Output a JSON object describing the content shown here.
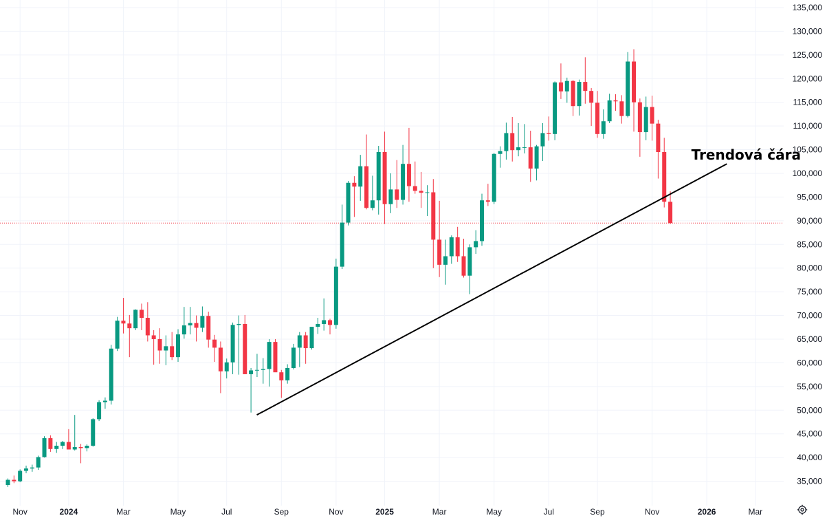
{
  "colors": {
    "up": "#089981",
    "down": "#f23645",
    "grid": "#f0f3fa",
    "axis_text": "#131722",
    "price_line": "#f23645",
    "trendline": "#000000"
  },
  "settings_icon": "gear-icon",
  "chart_data": {
    "type": "candlestick",
    "title": "",
    "interval": "1W",
    "y_axis": {
      "position": "right",
      "ylim": [
        30000,
        137000
      ],
      "ticks": [
        "35,000",
        "40,000",
        "45,000",
        "50,000",
        "55,000",
        "60,000",
        "65,000",
        "70,000",
        "75,000",
        "80,000",
        "85,000",
        "90,000",
        "95,000",
        "100,000",
        "105,000",
        "110,000",
        "115,000",
        "120,000",
        "125,000",
        "130,000",
        "135,000"
      ],
      "tick_values": [
        35000,
        40000,
        45000,
        50000,
        55000,
        60000,
        65000,
        70000,
        75000,
        80000,
        85000,
        90000,
        95000,
        100000,
        105000,
        110000,
        115000,
        120000,
        125000,
        130000,
        135000
      ]
    },
    "x_axis": {
      "labels": [
        {
          "text": "Nov",
          "week": 2,
          "bold": false
        },
        {
          "text": "2024",
          "week": 10,
          "bold": true
        },
        {
          "text": "Mar",
          "week": 19,
          "bold": false
        },
        {
          "text": "May",
          "week": 28,
          "bold": false
        },
        {
          "text": "Jul",
          "week": 36,
          "bold": false
        },
        {
          "text": "Sep",
          "week": 45,
          "bold": false
        },
        {
          "text": "Nov",
          "week": 54,
          "bold": false
        },
        {
          "text": "2025",
          "week": 62,
          "bold": true
        },
        {
          "text": "Mar",
          "week": 71,
          "bold": false
        },
        {
          "text": "May",
          "week": 80,
          "bold": false
        },
        {
          "text": "Jul",
          "week": 89,
          "bold": false
        },
        {
          "text": "Sep",
          "week": 97,
          "bold": false
        },
        {
          "text": "Nov",
          "week": 106,
          "bold": false
        },
        {
          "text": "2026",
          "week": 115,
          "bold": true
        },
        {
          "text": "Mar",
          "week": 123,
          "bold": false
        }
      ]
    },
    "current_price": 89500,
    "candles": [
      [
        34200,
        35600,
        33800,
        35300
      ],
      [
        35300,
        36200,
        34600,
        35000
      ],
      [
        35000,
        37500,
        34800,
        37200
      ],
      [
        37200,
        38300,
        36700,
        37700
      ],
      [
        37700,
        38500,
        37000,
        37900
      ],
      [
        37900,
        40400,
        37400,
        40100
      ],
      [
        40100,
        44500,
        40000,
        44100
      ],
      [
        44100,
        44700,
        41200,
        41800
      ],
      [
        41800,
        43300,
        41000,
        42500
      ],
      [
        42500,
        43500,
        41800,
        43300
      ],
      [
        43300,
        46000,
        42000,
        41700
      ],
      [
        41700,
        49000,
        41500,
        42200
      ],
      [
        42200,
        42900,
        38800,
        42000
      ],
      [
        42000,
        42800,
        41300,
        42500
      ],
      [
        42500,
        48300,
        42300,
        48100
      ],
      [
        48100,
        52100,
        47700,
        51700
      ],
      [
        51700,
        52700,
        50300,
        52000
      ],
      [
        52000,
        63800,
        51200,
        63000
      ],
      [
        63000,
        69700,
        62500,
        68900
      ],
      [
        68900,
        73700,
        66200,
        68300
      ],
      [
        68300,
        70100,
        61200,
        67300
      ],
      [
        67300,
        71300,
        66900,
        71200
      ],
      [
        71200,
        72500,
        66900,
        69500
      ],
      [
        69500,
        72800,
        64500,
        65800
      ],
      [
        65800,
        66900,
        59600,
        65000
      ],
      [
        65000,
        67300,
        59800,
        62600
      ],
      [
        62600,
        65800,
        59500,
        63500
      ],
      [
        63500,
        66500,
        60600,
        61200
      ],
      [
        61200,
        67100,
        60200,
        66000
      ],
      [
        66000,
        71800,
        65100,
        67900
      ],
      [
        67900,
        71800,
        66000,
        68400
      ],
      [
        68400,
        70000,
        64500,
        67400
      ],
      [
        67400,
        71900,
        66500,
        69900
      ],
      [
        69900,
        70800,
        63200,
        64900
      ],
      [
        64900,
        65900,
        60200,
        63200
      ],
      [
        63200,
        64500,
        53600,
        58200
      ],
      [
        58200,
        60900,
        56700,
        60100
      ],
      [
        60100,
        68500,
        57600,
        68000
      ],
      [
        68000,
        70000,
        57500,
        68200
      ],
      [
        68200,
        70100,
        58000,
        57600
      ],
      [
        57600,
        58900,
        49500,
        58400
      ],
      [
        58400,
        61900,
        57000,
        58500
      ],
      [
        58500,
        61000,
        55600,
        58700
      ],
      [
        58700,
        65000,
        55000,
        64400
      ],
      [
        64400,
        65000,
        58100,
        58000
      ],
      [
        58000,
        58500,
        52600,
        56300
      ],
      [
        56300,
        59700,
        55600,
        58900
      ],
      [
        58900,
        64000,
        58600,
        63200
      ],
      [
        63200,
        66500,
        59100,
        65800
      ],
      [
        65800,
        66500,
        59800,
        63100
      ],
      [
        63100,
        67100,
        62800,
        67600
      ],
      [
        67600,
        69500,
        66100,
        68200
      ],
      [
        68200,
        73600,
        66800,
        69000
      ],
      [
        69000,
        69300,
        66000,
        68000
      ],
      [
        68000,
        82000,
        67200,
        80300
      ],
      [
        80300,
        93400,
        79800,
        89600
      ],
      [
        89600,
        98400,
        89000,
        98000
      ],
      [
        98000,
        99400,
        90800,
        97200
      ],
      [
        97200,
        103900,
        94200,
        101500
      ],
      [
        101500,
        108200,
        92400,
        92700
      ],
      [
        92700,
        99500,
        92200,
        94300
      ],
      [
        94300,
        105800,
        91300,
        104500
      ],
      [
        104500,
        108800,
        89300,
        93500
      ],
      [
        93500,
        100000,
        91600,
        96600
      ],
      [
        96600,
        102800,
        92700,
        94400
      ],
      [
        94400,
        106000,
        93400,
        102000
      ],
      [
        102000,
        109600,
        94000,
        97300
      ],
      [
        97300,
        102500,
        95700,
        96300
      ],
      [
        96300,
        100300,
        92700,
        95900
      ],
      [
        95900,
        97500,
        91000,
        96000
      ],
      [
        96000,
        98800,
        80000,
        86000
      ],
      [
        86000,
        94200,
        78100,
        80700
      ],
      [
        80700,
        86000,
        76500,
        82500
      ],
      [
        82500,
        86900,
        80900,
        86500
      ],
      [
        86500,
        88700,
        81300,
        82500
      ],
      [
        82500,
        86200,
        78000,
        78400
      ],
      [
        78400,
        85000,
        74500,
        84400
      ],
      [
        84400,
        88000,
        83000,
        85700
      ],
      [
        85700,
        95700,
        84700,
        94300
      ],
      [
        94300,
        97800,
        93100,
        94000
      ],
      [
        94000,
        104300,
        93500,
        104100
      ],
      [
        104100,
        105700,
        101200,
        104700
      ],
      [
        104700,
        110700,
        102900,
        108500
      ],
      [
        108500,
        111900,
        102500,
        104900
      ],
      [
        104900,
        110600,
        103600,
        105500
      ],
      [
        105500,
        110400,
        104200,
        105500
      ],
      [
        105500,
        109000,
        98200,
        101000
      ],
      [
        101000,
        106000,
        98500,
        105700
      ],
      [
        105700,
        110600,
        102600,
        108500
      ],
      [
        108500,
        112000,
        106900,
        108300
      ],
      [
        108300,
        119400,
        107000,
        119200
      ],
      [
        119200,
        123200,
        115700,
        117300
      ],
      [
        117300,
        120200,
        114900,
        119500
      ],
      [
        119500,
        119700,
        112100,
        114200
      ],
      [
        114200,
        119800,
        112200,
        119300
      ],
      [
        119300,
        124500,
        114700,
        117400
      ],
      [
        117400,
        118000,
        110000,
        114900
      ],
      [
        114900,
        117400,
        107500,
        108300
      ],
      [
        108300,
        113500,
        107300,
        111000
      ],
      [
        111000,
        116800,
        110600,
        115400
      ],
      [
        115400,
        116700,
        113200,
        115200
      ],
      [
        115200,
        116500,
        110500,
        112100
      ],
      [
        112100,
        125600,
        111800,
        123600
      ],
      [
        123600,
        126200,
        108800,
        115000
      ],
      [
        115000,
        115800,
        103500,
        108700
      ],
      [
        108700,
        116200,
        107000,
        114000
      ],
      [
        114000,
        116400,
        106900,
        110500
      ],
      [
        110500,
        111300,
        98900,
        104500
      ],
      [
        104500,
        107500,
        92800,
        94000
      ],
      [
        94000,
        96200,
        89300,
        89500
      ]
    ],
    "annotations": [
      {
        "type": "trendline",
        "label": "Trendová čára",
        "from_week": 40.96,
        "from_price": 49000,
        "to_week": 118.3,
        "to_price": 102000
      }
    ]
  }
}
